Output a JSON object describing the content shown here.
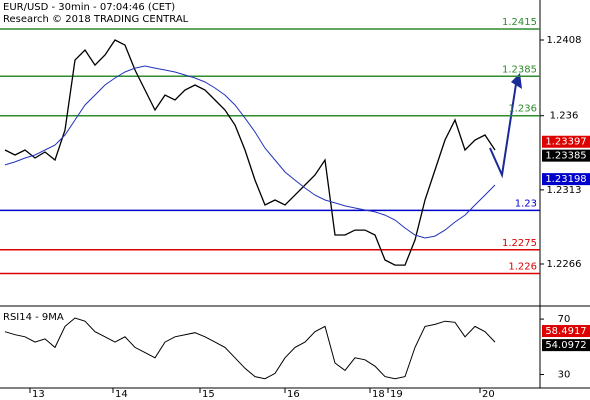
{
  "chart_data": {
    "type": "line",
    "title": "EUR/USD - 30min - 07:04:46 (CET)",
    "subtitle": "Research © 2018 TRADING CENTRAL",
    "xlim": [
      -0.5,
      53.5
    ],
    "xticks": [
      {
        "value": 2.5,
        "label": "13"
      },
      {
        "value": 10.8,
        "label": "14"
      },
      {
        "value": 19.5,
        "label": "15"
      },
      {
        "value": 28,
        "label": "16"
      },
      {
        "value": 36.5,
        "label": "18"
      },
      {
        "value": 38.3,
        "label": "19"
      },
      {
        "value": 47.5,
        "label": "20"
      }
    ],
    "ylim": [
      1.224,
      1.24321
    ],
    "yticks": [
      1.2266,
      1.2313,
      1.236,
      1.2408
    ],
    "series": [
      {
        "color": "#000000",
        "values": [
          1.23383,
          1.23351,
          1.23383,
          1.23332,
          1.2337,
          1.23319,
          1.23509,
          1.23953,
          1.24017,
          1.23921,
          1.23985,
          1.2408,
          1.24048,
          1.2389,
          1.23763,
          1.23636,
          1.23731,
          1.237,
          1.23763,
          1.23795,
          1.23763,
          1.237,
          1.23636,
          1.23541,
          1.23383,
          1.23192,
          1.23034,
          1.23066,
          1.23034,
          1.23097,
          1.23161,
          1.23224,
          1.23319,
          1.22844,
          1.22844,
          1.22875,
          1.22875,
          1.22844,
          1.22685,
          1.22653,
          1.22653,
          1.22812,
          1.23066,
          1.23256,
          1.23446,
          1.23573,
          1.23383,
          1.23446,
          1.23478,
          1.23383
        ]
      },
      {
        "color": "#2233bb",
        "values": [
          1.23288,
          1.23307,
          1.23332,
          1.23351,
          1.23383,
          1.23414,
          1.23478,
          1.23573,
          1.23668,
          1.23731,
          1.23795,
          1.23839,
          1.23877,
          1.23902,
          1.23915,
          1.23902,
          1.2389,
          1.23877,
          1.23858,
          1.23839,
          1.23814,
          1.23776,
          1.23731,
          1.23668,
          1.23585,
          1.23497,
          1.23395,
          1.23319,
          1.23243,
          1.23192,
          1.23142,
          1.23097,
          1.23066,
          1.23047,
          1.23028,
          1.23015,
          1.23002,
          1.2299,
          1.2297,
          1.22939,
          1.22888,
          1.22844,
          1.22825,
          1.22837,
          1.22875,
          1.22926,
          1.2297,
          1.23034,
          1.23097,
          1.23161
        ]
      }
    ],
    "levels": [
      {
        "value": 1.2415,
        "color": "#2e8b2e"
      },
      {
        "value": 1.2385,
        "color": "#2e8b2e"
      },
      {
        "value": 1.236,
        "color": "#2e8b2e"
      },
      {
        "value": 1.23,
        "color": "#0000cc"
      },
      {
        "value": 1.2275,
        "color": "#dd0000"
      },
      {
        "value": 1.226,
        "color": "#dd0000"
      }
    ],
    "markers": [
      {
        "value": 1.23397,
        "color": "#dd0000"
      },
      {
        "value": 1.23385,
        "color": "#000000"
      },
      {
        "value": 1.23198,
        "color": "#0000cc"
      }
    ],
    "rsi": {
      "title": "RSI14 - 9MA",
      "ylim": [
        21,
        78
      ],
      "yticks": [
        30,
        70
      ],
      "color": "#000000",
      "values": [
        60.9,
        58.7,
        57.2,
        53.4,
        55.7,
        49.6,
        64.7,
        70.8,
        68.5,
        60.9,
        57.2,
        53.4,
        57.2,
        49.6,
        45.8,
        42.1,
        53.4,
        57.2,
        58.7,
        60.2,
        57.2,
        53.4,
        49.6,
        42.1,
        34.5,
        28.5,
        27,
        30.8,
        42.1,
        49.6,
        53.4,
        60.9,
        64.7,
        38.3,
        33,
        42.1,
        40.6,
        36,
        28.5,
        27,
        28.5,
        49.6,
        64.7,
        66.2,
        68.5,
        67.7,
        57.2,
        64.7,
        60.9,
        53.4
      ],
      "markers": [
        {
          "value": 58.4917,
          "color": "#dd0000"
        },
        {
          "value": 54.0972,
          "color": "#000000"
        }
      ]
    }
  }
}
